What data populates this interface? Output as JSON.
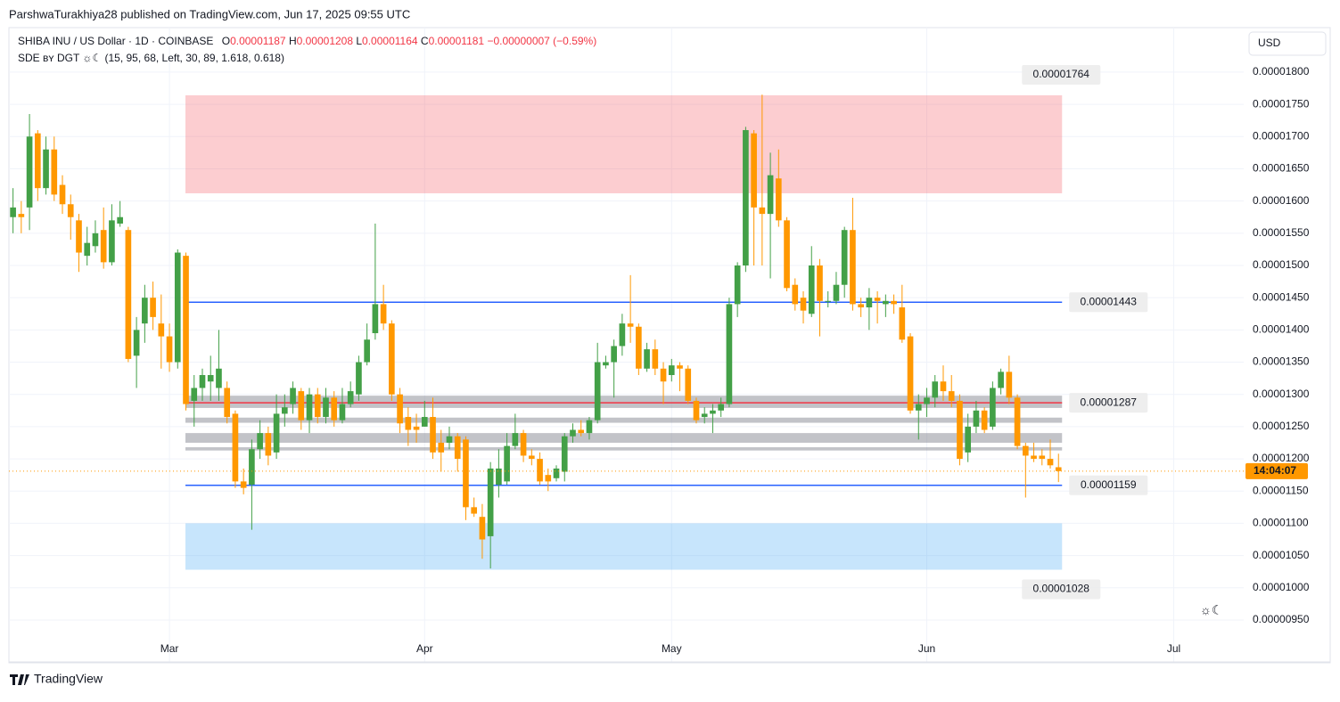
{
  "published": "ParshwaTurakhiya28 published on TradingView.com, Jun 17, 2025 09:55 UTC",
  "header": {
    "symbol": "SHIBA INU / US Dollar · 1D · COINBASE",
    "ohlc": [
      {
        "key": "O",
        "value": "0.00001187"
      },
      {
        "key": "H",
        "value": "0.00001208"
      },
      {
        "key": "L",
        "value": "0.00001164"
      },
      {
        "key": "C",
        "value": "0.00001181"
      }
    ],
    "change": "−0.00000007 (−0.59%)",
    "indicator": "SDE ʙʏ DGT ☼☾ (15, 95, 68, Left, 30, 89, 1.618, 0.618)"
  },
  "currency": "USD",
  "countdown": "14:04:07",
  "indicator_icon": "☼☾",
  "brand": "TradingView",
  "chart_data": {
    "type": "candlestick",
    "categories": [
      null,
      null,
      null,
      null,
      null,
      null,
      null,
      null,
      null,
      null,
      null,
      null,
      null,
      null,
      null,
      null,
      null,
      null,
      null,
      "Mar",
      null,
      null,
      null,
      null,
      null,
      null,
      null,
      null,
      null,
      null,
      null,
      null,
      null,
      null,
      null,
      null,
      null,
      null,
      null,
      null,
      null,
      null,
      null,
      null,
      null,
      null,
      null,
      null,
      null,
      null,
      "Apr",
      null,
      null,
      null,
      null,
      null,
      null,
      null,
      null,
      null,
      null,
      null,
      null,
      null,
      null,
      null,
      null,
      null,
      null,
      null,
      null,
      null,
      null,
      null,
      null,
      null,
      null,
      null,
      null,
      null,
      "May",
      null,
      null,
      null,
      null,
      null,
      null,
      null,
      null,
      null,
      null,
      null,
      null,
      null,
      null,
      null,
      null,
      null,
      null,
      null,
      null,
      null,
      null,
      null,
      null,
      null,
      null,
      null,
      null,
      null,
      null,
      "Jun",
      null,
      null,
      null,
      null,
      null,
      null,
      null,
      null,
      null,
      null,
      null,
      null,
      null,
      null,
      null,
      null,
      null,
      null,
      null,
      null,
      null,
      null,
      null,
      null,
      null,
      null,
      null,
      null,
      null,
      "Jul",
      null,
      null,
      null,
      null,
      null,
      null,
      null,
      null
    ],
    "open": [
      1.575e-05,
      1.58e-05,
      1.59e-05,
      1.705e-05,
      1.62e-05,
      1.68e-05,
      1.625e-05,
      1.595e-05,
      1.57e-05,
      1.515e-05,
      1.53e-05,
      1.555e-05,
      1.505e-05,
      1.565e-05,
      1.555e-05,
      1.36e-05,
      1.41e-05,
      1.45e-05,
      1.41e-05,
      1.39e-05,
      1.35e-05,
      1.515e-05,
      1.29e-05,
      1.31e-05,
      1.32e-05,
      1.31e-05,
      1.31e-05,
      1.27e-05,
      1.165e-05,
      1.16e-05,
      1.215e-05,
      1.24e-05,
      1.21e-05,
      1.27e-05,
      1.285e-05,
      1.305e-05,
      1.26e-05,
      1.3e-05,
      1.265e-05,
      1.295e-05,
      1.26e-05,
      1.285e-05,
      1.3e-05,
      1.35e-05,
      1.395e-05,
      1.44e-05,
      1.41e-05,
      1.3e-05,
      1.265e-05,
      1.25e-05,
      1.25e-05,
      1.265e-05,
      1.225e-05,
      1.225e-05,
      1.235e-05,
      1.23e-05,
      1.125e-05,
      1.11e-05,
      1.08e-05,
      1.16e-05,
      1.165e-05,
      1.22e-05,
      1.24e-05,
      1.205e-05,
      1.2e-05,
      1.175e-05,
      1.17e-05,
      1.18e-05,
      1.235e-05,
      1.245e-05,
      1.24e-05,
      1.26e-05,
      1.345e-05,
      1.35e-05,
      1.375e-05,
      1.41e-05,
      1.405e-05,
      1.34e-05,
      1.37e-05,
      1.34e-05,
      1.33e-05,
      1.345e-05,
      1.34e-05,
      1.29e-05,
      1.265e-05,
      1.27e-05,
      1.275e-05,
      1.285e-05,
      1.44e-05,
      1.5e-05,
      1.705e-05,
      1.59e-05,
      1.58e-05,
      1.635e-05,
      1.57e-05,
      1.47e-05,
      1.45e-05,
      1.425e-05,
      1.5e-05,
      1.445e-05,
      1.445e-05,
      1.47e-05,
      1.555e-05,
      1.44e-05,
      1.435e-05,
      1.45e-05,
      1.44e-05,
      1.445e-05,
      1.435e-05,
      1.39e-05,
      1.275e-05,
      1.285e-05,
      1.295e-05,
      1.32e-05,
      1.305e-05,
      1.29e-05,
      1.21e-05,
      1.25e-05,
      1.275e-05,
      1.25e-05,
      1.31e-05,
      1.335e-05,
      1.295e-05,
      1.22e-05,
      1.205e-05,
      1.205e-05,
      1.2e-05,
      1.187e-05,
      null,
      null,
      null,
      null,
      null,
      null,
      null,
      null,
      null,
      null,
      null,
      null,
      null,
      null,
      null,
      null,
      null,
      null,
      null,
      null,
      null,
      null
    ],
    "high": [
      1.62e-05,
      1.6e-05,
      1.735e-05,
      1.71e-05,
      1.7e-05,
      1.7e-05,
      1.64e-05,
      1.61e-05,
      1.58e-05,
      1.56e-05,
      1.57e-05,
      1.59e-05,
      1.595e-05,
      1.6e-05,
      1.56e-05,
      1.42e-05,
      1.47e-05,
      1.475e-05,
      1.455e-05,
      1.41e-05,
      1.525e-05,
      1.52e-05,
      1.33e-05,
      1.34e-05,
      1.36e-05,
      1.4e-05,
      1.32e-05,
      1.275e-05,
      1.185e-05,
      1.23e-05,
      1.26e-05,
      1.25e-05,
      1.3e-05,
      1.3e-05,
      1.32e-05,
      1.31e-05,
      1.31e-05,
      1.31e-05,
      1.31e-05,
      1.305e-05,
      1.31e-05,
      1.32e-05,
      1.36e-05,
      1.41e-05,
      1.565e-05,
      1.47e-05,
      1.415e-05,
      1.31e-05,
      1.28e-05,
      1.27e-05,
      1.29e-05,
      1.295e-05,
      1.245e-05,
      1.25e-05,
      1.24e-05,
      1.235e-05,
      1.14e-05,
      1.13e-05,
      1.195e-05,
      1.215e-05,
      1.24e-05,
      1.27e-05,
      1.245e-05,
      1.215e-05,
      1.21e-05,
      1.185e-05,
      1.19e-05,
      1.24e-05,
      1.255e-05,
      1.26e-05,
      1.265e-05,
      1.38e-05,
      1.36e-05,
      1.385e-05,
      1.425e-05,
      1.485e-05,
      1.41e-05,
      1.38e-05,
      1.385e-05,
      1.35e-05,
      1.355e-05,
      1.35e-05,
      1.345e-05,
      1.295e-05,
      1.28e-05,
      1.285e-05,
      1.295e-05,
      1.45e-05,
      1.505e-05,
      1.715e-05,
      1.71e-05,
      1.765e-05,
      1.675e-05,
      1.68e-05,
      1.575e-05,
      1.48e-05,
      1.46e-05,
      1.53e-05,
      1.51e-05,
      1.46e-05,
      1.49e-05,
      1.56e-05,
      1.605e-05,
      1.45e-05,
      1.465e-05,
      1.46e-05,
      1.455e-05,
      1.455e-05,
      1.47e-05,
      1.395e-05,
      1.3e-05,
      1.31e-05,
      1.33e-05,
      1.345e-05,
      1.33e-05,
      1.3e-05,
      1.27e-05,
      1.29e-05,
      1.28e-05,
      1.32e-05,
      1.34e-05,
      1.36e-05,
      1.3e-05,
      1.225e-05,
      1.225e-05,
      1.215e-05,
      1.23e-05,
      1.208e-05,
      null,
      null,
      null,
      null,
      null,
      null,
      null,
      null,
      null,
      null,
      null,
      null,
      null,
      null,
      null,
      null,
      null,
      null,
      null,
      null,
      null,
      null
    ],
    "low": [
      1.55e-05,
      1.55e-05,
      1.555e-05,
      1.6e-05,
      1.61e-05,
      1.6e-05,
      1.58e-05,
      1.54e-05,
      1.49e-05,
      1.5e-05,
      1.52e-05,
      1.495e-05,
      1.5e-05,
      1.56e-05,
      1.35e-05,
      1.31e-05,
      1.38e-05,
      1.4e-05,
      1.34e-05,
      1.335e-05,
      1.34e-05,
      1.275e-05,
      1.25e-05,
      1.29e-05,
      1.29e-05,
      1.29e-05,
      1.255e-05,
      1.155e-05,
      1.145e-05,
      1.09e-05,
      1.2e-05,
      1.19e-05,
      1.2e-05,
      1.25e-05,
      1.27e-05,
      1.245e-05,
      1.24e-05,
      1.255e-05,
      1.255e-05,
      1.25e-05,
      1.255e-05,
      1.28e-05,
      1.29e-05,
      1.345e-05,
      1.385e-05,
      1.4e-05,
      1.29e-05,
      1.24e-05,
      1.22e-05,
      1.225e-05,
      1.25e-05,
      1.2e-05,
      1.18e-05,
      1.215e-05,
      1.18e-05,
      1.105e-05,
      1.11e-05,
      1.045e-05,
      1.03e-05,
      1.14e-05,
      1.16e-05,
      1.215e-05,
      1.195e-05,
      1.19e-05,
      1.16e-05,
      1.15e-05,
      1.165e-05,
      1.165e-05,
      1.225e-05,
      1.235e-05,
      1.23e-05,
      1.255e-05,
      1.34e-05,
      1.295e-05,
      1.36e-05,
      1.38e-05,
      1.33e-05,
      1.335e-05,
      1.33e-05,
      1.285e-05,
      1.32e-05,
      1.305e-05,
      1.285e-05,
      1.255e-05,
      1.255e-05,
      1.24e-05,
      1.265e-05,
      1.28e-05,
      1.42e-05,
      1.49e-05,
      1.5e-05,
      1.5e-05,
      1.48e-05,
      1.56e-05,
      1.46e-05,
      1.43e-05,
      1.41e-05,
      1.42e-05,
      1.39e-05,
      1.435e-05,
      1.44e-05,
      1.45e-05,
      1.43e-05,
      1.42e-05,
      1.4e-05,
      1.41e-05,
      1.42e-05,
      1.425e-05,
      1.38e-05,
      1.27e-05,
      1.23e-05,
      1.265e-05,
      1.28e-05,
      1.29e-05,
      1.28e-05,
      1.19e-05,
      1.195e-05,
      1.24e-05,
      1.24e-05,
      1.245e-05,
      1.3e-05,
      1.285e-05,
      1.215e-05,
      1.14e-05,
      1.195e-05,
      1.19e-05,
      1.185e-05,
      1.164e-05,
      null,
      null,
      null,
      null,
      null,
      null,
      null,
      null,
      null,
      null,
      null,
      null,
      null,
      null,
      null,
      null,
      null,
      null,
      null,
      null,
      null,
      null
    ],
    "close": [
      1.59e-05,
      1.575e-05,
      1.7e-05,
      1.62e-05,
      1.68e-05,
      1.61e-05,
      1.595e-05,
      1.575e-05,
      1.52e-05,
      1.535e-05,
      1.55e-05,
      1.505e-05,
      1.57e-05,
      1.575e-05,
      1.355e-05,
      1.4e-05,
      1.45e-05,
      1.42e-05,
      1.39e-05,
      1.35e-05,
      1.52e-05,
      1.285e-05,
      1.31e-05,
      1.33e-05,
      1.33e-05,
      1.34e-05,
      1.265e-05,
      1.165e-05,
      1.155e-05,
      1.215e-05,
      1.24e-05,
      1.205e-05,
      1.27e-05,
      1.28e-05,
      1.31e-05,
      1.26e-05,
      1.3e-05,
      1.265e-05,
      1.295e-05,
      1.26e-05,
      1.285e-05,
      1.305e-05,
      1.35e-05,
      1.385e-05,
      1.44e-05,
      1.41e-05,
      1.3e-05,
      1.255e-05,
      1.245e-05,
      1.245e-05,
      1.265e-05,
      1.21e-05,
      1.21e-05,
      1.235e-05,
      1.2e-05,
      1.125e-05,
      1.115e-05,
      1.075e-05,
      1.185e-05,
      1.185e-05,
      1.22e-05,
      1.24e-05,
      1.205e-05,
      1.2e-05,
      1.165e-05,
      1.165e-05,
      1.185e-05,
      1.235e-05,
      1.245e-05,
      1.24e-05,
      1.26e-05,
      1.35e-05,
      1.35e-05,
      1.375e-05,
      1.41e-05,
      1.405e-05,
      1.34e-05,
      1.37e-05,
      1.34e-05,
      1.32e-05,
      1.345e-05,
      1.34e-05,
      1.29e-05,
      1.26e-05,
      1.27e-05,
      1.275e-05,
      1.285e-05,
      1.44e-05,
      1.5e-05,
      1.71e-05,
      1.59e-05,
      1.58e-05,
      1.64e-05,
      1.57e-05,
      1.465e-05,
      1.44e-05,
      1.43e-05,
      1.5e-05,
      1.445e-05,
      1.445e-05,
      1.47e-05,
      1.555e-05,
      1.44e-05,
      1.435e-05,
      1.45e-05,
      1.445e-05,
      1.445e-05,
      1.44e-05,
      1.385e-05,
      1.275e-05,
      1.285e-05,
      1.295e-05,
      1.32e-05,
      1.305e-05,
      1.29e-05,
      1.2e-05,
      1.25e-05,
      1.275e-05,
      1.245e-05,
      1.31e-05,
      1.335e-05,
      1.295e-05,
      1.22e-05,
      1.205e-05,
      1.2e-05,
      1.2e-05,
      1.19e-05,
      1.181e-05,
      null,
      null,
      null,
      null,
      null,
      null,
      null,
      null,
      null,
      null,
      null,
      null,
      null,
      null,
      null,
      null,
      null,
      null,
      null,
      null,
      null,
      null
    ],
    "up_color": "#43a047",
    "down_color": "#ff9800",
    "ylim": [
      8.85e-06,
      1.869e-05
    ],
    "yticks": [
      {
        "value": 9.5e-06,
        "label": "0.00000950"
      },
      {
        "value": 1e-05,
        "label": "0.00001000"
      },
      {
        "value": 1.05e-05,
        "label": "0.00001050"
      },
      {
        "value": 1.1e-05,
        "label": "0.00001100"
      },
      {
        "value": 1.15e-05,
        "label": "0.00001150"
      },
      {
        "value": 1.2e-05,
        "label": "0.00001200"
      },
      {
        "value": 1.25e-05,
        "label": "0.00001250"
      },
      {
        "value": 1.3e-05,
        "label": "0.00001300"
      },
      {
        "value": 1.35e-05,
        "label": "0.00001350"
      },
      {
        "value": 1.4e-05,
        "label": "0.00001400"
      },
      {
        "value": 1.45e-05,
        "label": "0.00001450"
      },
      {
        "value": 1.5e-05,
        "label": "0.00001500"
      },
      {
        "value": 1.55e-05,
        "label": "0.00001550"
      },
      {
        "value": 1.6e-05,
        "label": "0.00001600"
      },
      {
        "value": 1.65e-05,
        "label": "0.00001650"
      },
      {
        "value": 1.7e-05,
        "label": "0.00001700"
      },
      {
        "value": 1.75e-05,
        "label": "0.00001750"
      },
      {
        "value": 1.8e-05,
        "label": "0.00001800"
      }
    ],
    "grid": true,
    "zones": [
      {
        "from": 1.612e-05,
        "to": 1.764e-05,
        "color": "rgba(242,54,69,0.25)"
      },
      {
        "from": 1.028e-05,
        "to": 1.1e-05,
        "color": "rgba(33,150,243,0.25)"
      },
      {
        "from": 1.279e-05,
        "to": 1.298e-05,
        "color": "rgba(120,123,134,0.45)"
      },
      {
        "from": 1.256e-05,
        "to": 1.264e-05,
        "color": "rgba(120,123,134,0.45)"
      },
      {
        "from": 1.225e-05,
        "to": 1.24e-05,
        "color": "rgba(120,123,134,0.45)"
      },
      {
        "from": 1.213e-05,
        "to": 1.218e-05,
        "color": "rgba(120,123,134,0.45)"
      }
    ],
    "levels": [
      {
        "value": 1.764e-05,
        "label": "0.00001764",
        "line_color": null
      },
      {
        "value": 1.443e-05,
        "label": "0.00001443",
        "line_color": "#2962ff"
      },
      {
        "value": 1.287e-05,
        "label": "0.00001287",
        "line_color": "#f23645"
      },
      {
        "value": 1.159e-05,
        "label": "0.00001159",
        "line_color": "#2962ff"
      },
      {
        "value": 1.028e-05,
        "label": "0.00001028",
        "line_color": null
      }
    ]
  }
}
